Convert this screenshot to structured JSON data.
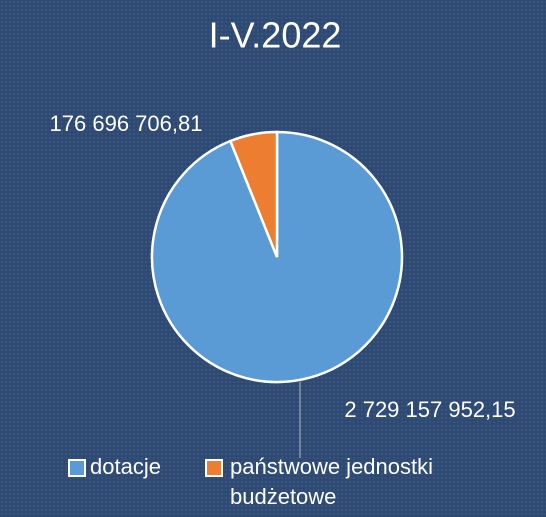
{
  "chart_data": {
    "type": "pie",
    "title": "I-V.2022",
    "categories": [
      "dotacje",
      "państwowe jednostki budżetowe"
    ],
    "values": [
      2729157952.15,
      176696706.81
    ],
    "value_labels": [
      "2 729 157 952,15",
      "176 696 706,81"
    ],
    "colors": [
      "#5b9bd5",
      "#ed7d31"
    ]
  }
}
